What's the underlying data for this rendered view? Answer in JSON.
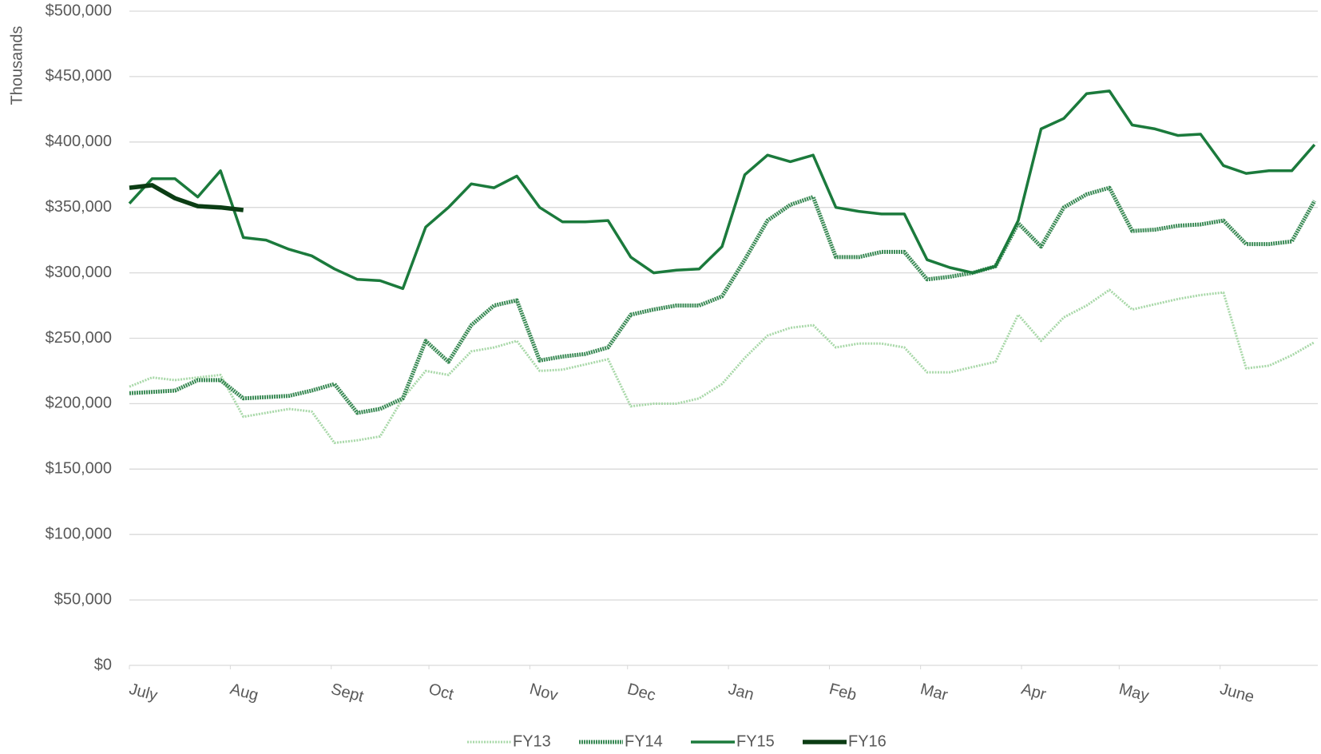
{
  "chart_data": {
    "type": "line",
    "y_label": "Thousands",
    "xlim": [
      0,
      365
    ],
    "xticks": [
      {
        "value": 0,
        "label": "July"
      },
      {
        "value": 31,
        "label": "Aug"
      },
      {
        "value": 62,
        "label": "Sept"
      },
      {
        "value": 92,
        "label": "Oct"
      },
      {
        "value": 123,
        "label": "Nov"
      },
      {
        "value": 153,
        "label": "Dec"
      },
      {
        "value": 184,
        "label": "Jan"
      },
      {
        "value": 215,
        "label": "Feb"
      },
      {
        "value": 243,
        "label": "Mar"
      },
      {
        "value": 274,
        "label": "Apr"
      },
      {
        "value": 304,
        "label": "May"
      },
      {
        "value": 335,
        "label": "June"
      }
    ],
    "ylim": [
      0,
      500000
    ],
    "yticks": [
      {
        "value": 0,
        "label": "$0"
      },
      {
        "value": 50000,
        "label": "$50,000"
      },
      {
        "value": 100000,
        "label": "$100,000"
      },
      {
        "value": 150000,
        "label": "$150,000"
      },
      {
        "value": 200000,
        "label": "$200,000"
      },
      {
        "value": 250000,
        "label": "$250,000"
      },
      {
        "value": 300000,
        "label": "$300,000"
      },
      {
        "value": 350000,
        "label": "$350,000"
      },
      {
        "value": 400000,
        "label": "$400,000"
      },
      {
        "value": 450000,
        "label": "$450,000"
      },
      {
        "value": 500000,
        "label": "$500,000"
      }
    ],
    "grid": true,
    "legend": "bottom",
    "x": [
      0,
      7,
      14,
      21,
      28,
      35,
      42,
      49,
      56,
      63,
      70,
      77,
      84,
      91,
      98,
      105,
      112,
      119,
      126,
      133,
      140,
      147,
      154,
      161,
      168,
      175,
      182,
      189,
      196,
      203,
      210,
      217,
      224,
      231,
      238,
      245,
      252,
      259,
      266,
      273,
      280,
      287,
      294,
      301,
      308,
      315,
      322,
      329,
      336,
      343,
      350,
      357,
      364
    ],
    "series": [
      {
        "name": "FY13",
        "color": "#a8d8a8",
        "values": [
          213000,
          220000,
          218000,
          220000,
          222000,
          190000,
          193000,
          196000,
          194000,
          170000,
          172000,
          175000,
          204000,
          225000,
          222000,
          240000,
          243000,
          248000,
          225000,
          226000,
          230000,
          234000,
          198000,
          200000,
          200000,
          204000,
          215000,
          235000,
          252000,
          258000,
          260000,
          243000,
          246000,
          246000,
          243000,
          224000,
          224000,
          228000,
          232000,
          268000,
          248000,
          266000,
          275000,
          287000,
          272000,
          276000,
          280000,
          283000,
          285000,
          227000,
          229000,
          237000,
          247000
        ]
      },
      {
        "name": "FY14",
        "color": "#3a8a55",
        "values": [
          208000,
          209000,
          210000,
          218000,
          218000,
          204000,
          205000,
          206000,
          210000,
          215000,
          193000,
          196000,
          204000,
          248000,
          232000,
          260000,
          275000,
          279000,
          233000,
          236000,
          238000,
          243000,
          268000,
          272000,
          275000,
          275000,
          282000,
          310000,
          340000,
          352000,
          358000,
          312000,
          312000,
          316000,
          316000,
          295000,
          297000,
          300000,
          305000,
          338000,
          320000,
          350000,
          360000,
          365000,
          332000,
          333000,
          336000,
          337000,
          340000,
          322000,
          322000,
          324000,
          355000
        ]
      },
      {
        "name": "FY15",
        "color": "#1b7a3c",
        "values": [
          353000,
          372000,
          372000,
          358000,
          378000,
          327000,
          325000,
          318000,
          313000,
          303000,
          295000,
          294000,
          288000,
          335000,
          350000,
          368000,
          365000,
          374000,
          350000,
          339000,
          339000,
          340000,
          312000,
          300000,
          302000,
          303000,
          320000,
          375000,
          390000,
          385000,
          390000,
          350000,
          347000,
          345000,
          345000,
          310000,
          304000,
          300000,
          305000,
          340000,
          410000,
          418000,
          437000,
          439000,
          413000,
          410000,
          405000,
          406000,
          382000,
          376000,
          378000,
          378000,
          398000
        ]
      },
      {
        "name": "FY16",
        "color": "#0b3d14",
        "values": [
          365000,
          367000,
          357000,
          351000,
          350000,
          348000,
          null,
          null,
          null,
          null,
          null,
          null,
          null,
          null,
          null,
          null,
          null,
          null,
          null,
          null,
          null,
          null,
          null,
          null,
          null,
          null,
          null,
          null,
          null,
          null,
          null,
          null,
          null,
          null,
          null,
          null,
          null,
          null,
          null,
          null,
          null,
          null,
          null,
          null,
          null,
          null,
          null,
          null,
          null,
          null,
          null,
          null,
          null
        ]
      }
    ]
  }
}
